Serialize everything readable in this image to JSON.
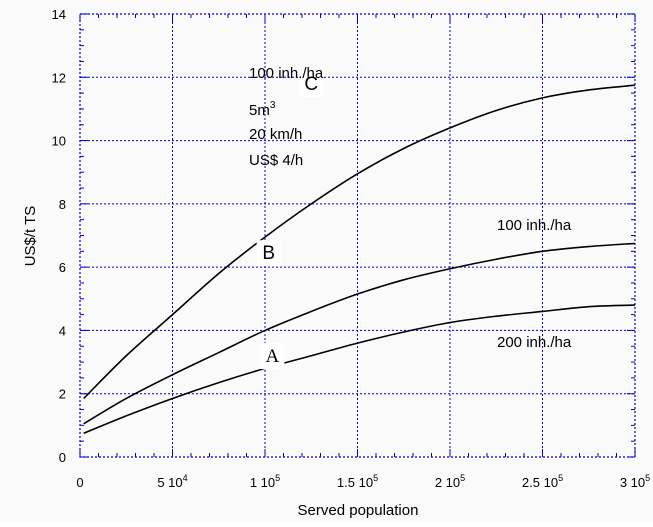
{
  "chart_data": {
    "type": "line",
    "title": "",
    "xlabel": "Served population",
    "ylabel": "US$/t TS",
    "xlim": [
      0,
      300000
    ],
    "ylim": [
      0,
      14
    ],
    "grid": true,
    "legend": "none",
    "x_ticks": [
      {
        "value": 0,
        "base": "0",
        "exp": ""
      },
      {
        "value": 50000,
        "base": "5 10",
        "exp": "4"
      },
      {
        "value": 100000,
        "base": "1 10",
        "exp": "5"
      },
      {
        "value": 150000,
        "base": "1.5 10",
        "exp": "5"
      },
      {
        "value": 200000,
        "base": "2 10",
        "exp": "5"
      },
      {
        "value": 250000,
        "base": "2.5 10",
        "exp": "5"
      },
      {
        "value": 300000,
        "base": "3 10",
        "exp": "5"
      }
    ],
    "y_ticks": [
      "0",
      "2",
      "4",
      "6",
      "8",
      "10",
      "12",
      "14"
    ],
    "series": [
      {
        "name": "A",
        "x": [
          2000,
          25000,
          50000,
          75000,
          100000,
          125000,
          150000,
          175000,
          200000,
          225000,
          250000,
          275000,
          300000
        ],
        "y": [
          0.75,
          1.3,
          1.85,
          2.35,
          2.8,
          3.2,
          3.6,
          3.95,
          4.25,
          4.45,
          4.6,
          4.75,
          4.8
        ]
      },
      {
        "name": "B",
        "x": [
          2000,
          25000,
          50000,
          75000,
          100000,
          125000,
          150000,
          175000,
          200000,
          225000,
          250000,
          275000,
          300000
        ],
        "y": [
          1.05,
          1.85,
          2.6,
          3.3,
          4.0,
          4.6,
          5.15,
          5.6,
          5.95,
          6.25,
          6.5,
          6.65,
          6.75
        ]
      },
      {
        "name": "C",
        "x": [
          2000,
          25000,
          50000,
          75000,
          100000,
          125000,
          150000,
          175000,
          200000,
          225000,
          250000,
          275000,
          300000
        ],
        "y": [
          1.85,
          3.2,
          4.5,
          5.8,
          6.95,
          8.0,
          8.95,
          9.75,
          10.4,
          10.95,
          11.35,
          11.6,
          11.75
        ]
      }
    ],
    "series_labels": [
      {
        "text": "C",
        "x": 125000,
        "y": 11.6
      },
      {
        "text": "B",
        "x": 102000,
        "y": 6.25
      },
      {
        "text": "A",
        "x": 104000,
        "y": 3.0
      }
    ],
    "annotations": {
      "top_density": "100 inh./ha",
      "volume_base": "5m",
      "volume_sup": "3",
      "speed": "20 km/h",
      "cost": "US$ 4/h",
      "b_density": "100 inh./ha",
      "a_density": "200 inh./ha"
    }
  }
}
